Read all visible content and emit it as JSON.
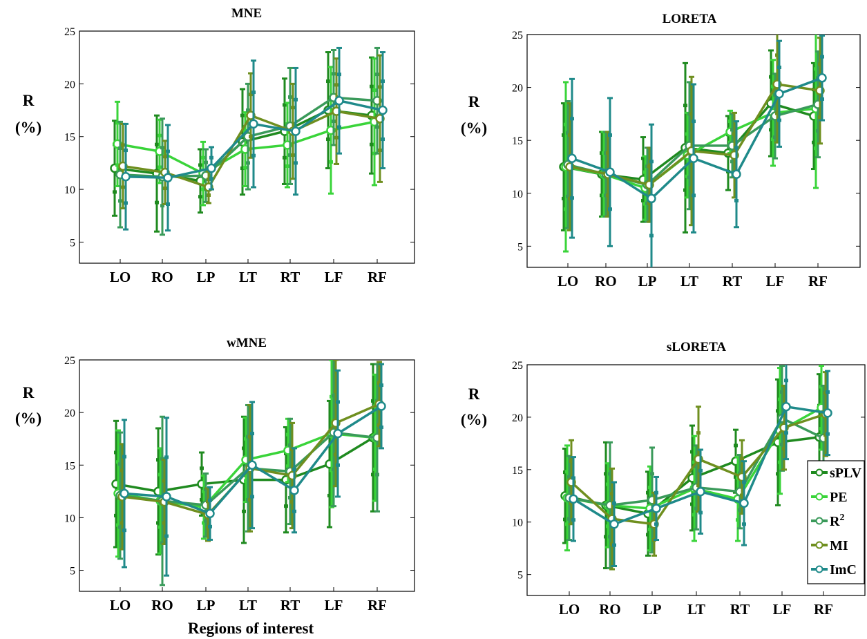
{
  "figure": {
    "ylabel_line1": "R",
    "ylabel_line2": "(%)",
    "xlabel": "Regions of interest"
  },
  "legend": [
    {
      "label": "sPLV",
      "sup": ""
    },
    {
      "label": "PE",
      "sup": ""
    },
    {
      "label": "R",
      "sup": "2"
    },
    {
      "label": "MI",
      "sup": ""
    },
    {
      "label": "ImC",
      "sup": ""
    }
  ],
  "colors": {
    "sPLV": "#1f8a1f",
    "PE": "#3ad43a",
    "R2": "#3a9a5a",
    "MI": "#6f8f1f",
    "ImC": "#1f8a8a"
  },
  "chart_data": [
    {
      "type": "line",
      "title": "MNE",
      "categories": [
        "LO",
        "RO",
        "LP",
        "LT",
        "RT",
        "LF",
        "RF"
      ],
      "ylim": [
        3,
        25
      ],
      "yticks": [
        5,
        10,
        15,
        20,
        25
      ],
      "series": [
        {
          "name": "sPLV",
          "values": [
            12.0,
            11.5,
            10.8,
            14.5,
            15.5,
            17.5,
            17.0
          ],
          "err": [
            4.5,
            5.5,
            3.0,
            5.0,
            5.0,
            5.5,
            5.5
          ]
        },
        {
          "name": "PE",
          "values": [
            14.3,
            13.6,
            11.5,
            13.8,
            14.2,
            15.6,
            16.4
          ],
          "err": [
            4.0,
            3.0,
            3.0,
            3.5,
            4.0,
            6.0,
            6.0
          ]
        },
        {
          "name": "R2",
          "values": [
            11.4,
            11.2,
            11.3,
            15.0,
            16.0,
            18.7,
            18.4
          ],
          "err": [
            5.0,
            5.5,
            2.5,
            5.0,
            5.5,
            4.5,
            5.0
          ]
        },
        {
          "name": "MI",
          "values": [
            12.2,
            11.6,
            10.2,
            17.0,
            15.5,
            17.4,
            16.7
          ],
          "err": [
            4.0,
            3.0,
            1.5,
            4.0,
            4.5,
            5.0,
            6.0
          ]
        },
        {
          "name": "ImC",
          "values": [
            11.2,
            11.1,
            12.0,
            16.2,
            15.5,
            18.4,
            17.5
          ],
          "err": [
            5.0,
            5.0,
            2.0,
            6.0,
            6.0,
            5.0,
            5.5
          ]
        }
      ]
    },
    {
      "type": "line",
      "title": "LORETA",
      "categories": [
        "LO",
        "RO",
        "LP",
        "LT",
        "RT",
        "LF",
        "RF"
      ],
      "ylim": [
        3,
        25
      ],
      "yticks": [
        5,
        10,
        15,
        20,
        25
      ],
      "series": [
        {
          "name": "sPLV",
          "values": [
            12.5,
            11.8,
            11.3,
            14.3,
            13.8,
            18.5,
            17.3
          ],
          "err": [
            6.0,
            4.0,
            4.0,
            8.0,
            3.5,
            5.0,
            5.0
          ]
        },
        {
          "name": "PE",
          "values": [
            12.5,
            11.8,
            10.5,
            13.6,
            15.8,
            17.6,
            18.0
          ],
          "err": [
            8.0,
            4.0,
            3.0,
            4.0,
            2.0,
            5.0,
            7.5
          ]
        },
        {
          "name": "R2",
          "values": [
            12.7,
            11.8,
            10.8,
            14.5,
            14.5,
            17.3,
            18.4
          ],
          "err": [
            6.0,
            4.0,
            3.5,
            6.0,
            3.0,
            4.0,
            5.0
          ]
        },
        {
          "name": "MI",
          "values": [
            12.5,
            11.8,
            10.8,
            14.0,
            13.6,
            20.3,
            19.7
          ],
          "err": [
            6.0,
            4.0,
            3.5,
            7.0,
            4.0,
            5.5,
            5.0
          ]
        },
        {
          "name": "ImC",
          "values": [
            13.3,
            12.0,
            9.5,
            13.3,
            11.8,
            19.4,
            20.9
          ],
          "err": [
            7.5,
            7.0,
            7.0,
            7.0,
            5.0,
            5.0,
            4.0
          ]
        }
      ]
    },
    {
      "type": "line",
      "title": "wMNE",
      "categories": [
        "LO",
        "RO",
        "LP",
        "LT",
        "RT",
        "LF",
        "RF"
      ],
      "ylim": [
        3,
        25
      ],
      "yticks": [
        5,
        10,
        15,
        20,
        25
      ],
      "series": [
        {
          "name": "sPLV",
          "values": [
            13.2,
            12.5,
            13.2,
            13.6,
            13.6,
            15.1,
            17.6
          ],
          "err": [
            6.0,
            6.0,
            3.0,
            6.0,
            5.0,
            6.0,
            7.0
          ]
        },
        {
          "name": "PE",
          "values": [
            12.3,
            11.6,
            11.0,
            15.5,
            16.4,
            18.0,
            17.6
          ],
          "err": [
            6.0,
            5.0,
            3.0,
            4.0,
            3.0,
            7.0,
            6.0
          ]
        },
        {
          "name": "R2",
          "values": [
            12.1,
            11.6,
            11.2,
            14.7,
            14.4,
            18.1,
            17.6
          ],
          "err": [
            6.0,
            8.0,
            3.0,
            6.0,
            5.0,
            7.0,
            7.0
          ]
        },
        {
          "name": "MI",
          "values": [
            12.0,
            11.5,
            10.3,
            14.7,
            14.0,
            19.0,
            20.8
          ],
          "err": [
            5.0,
            4.0,
            2.5,
            6.0,
            5.0,
            6.0,
            4.0
          ]
        },
        {
          "name": "ImC",
          "values": [
            12.3,
            12.0,
            10.4,
            15.0,
            12.6,
            18.0,
            20.6
          ],
          "err": [
            7.0,
            7.5,
            2.5,
            6.0,
            4.0,
            6.0,
            4.0
          ]
        }
      ]
    },
    {
      "type": "line",
      "title": "sLORETA",
      "categories": [
        "LO",
        "RO",
        "LP",
        "LT",
        "RT",
        "LF",
        "RF"
      ],
      "ylim": [
        3,
        25
      ],
      "yticks": [
        5,
        10,
        15,
        20,
        25
      ],
      "series": [
        {
          "name": "sPLV",
          "values": [
            12.5,
            11.6,
            10.8,
            14.2,
            15.8,
            17.6,
            18.1
          ],
          "err": [
            4.5,
            6.0,
            4.0,
            5.0,
            3.0,
            6.0,
            6.0
          ]
        },
        {
          "name": "PE",
          "values": [
            12.3,
            11.6,
            11.3,
            13.2,
            12.2,
            18.7,
            20.9
          ],
          "err": [
            5.0,
            4.0,
            4.0,
            5.0,
            4.0,
            6.0,
            4.0
          ]
        },
        {
          "name": "R2",
          "values": [
            12.3,
            11.6,
            12.1,
            13.3,
            12.9,
            19.9,
            18.0
          ],
          "err": [
            4.0,
            6.0,
            5.0,
            4.0,
            3.5,
            5.0,
            5.0
          ]
        },
        {
          "name": "MI",
          "values": [
            13.8,
            10.3,
            9.8,
            16.0,
            14.3,
            19.0,
            20.3
          ],
          "err": [
            4.0,
            4.8,
            3.0,
            5.0,
            3.5,
            4.0,
            4.0
          ]
        },
        {
          "name": "ImC",
          "values": [
            12.2,
            9.8,
            11.3,
            12.9,
            11.8,
            21.0,
            20.4
          ],
          "err": [
            4.0,
            4.0,
            3.0,
            4.0,
            4.0,
            5.0,
            4.0
          ]
        }
      ]
    }
  ]
}
